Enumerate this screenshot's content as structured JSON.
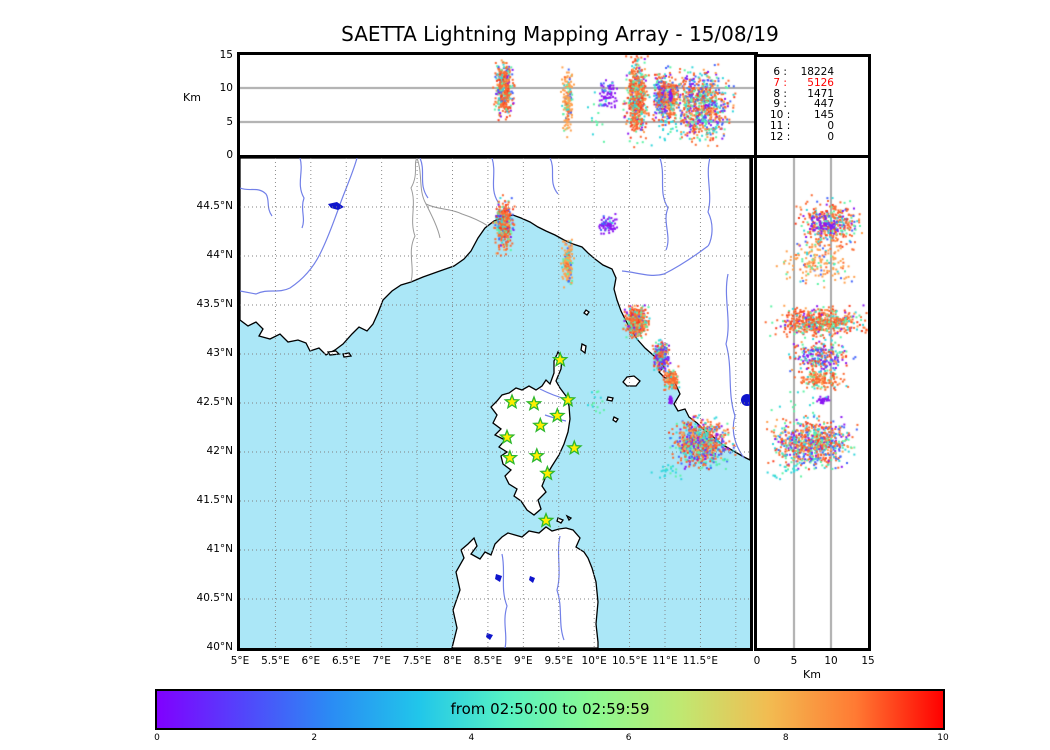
{
  "title": "SAETTA Lightning Mapping Array - 15/08/19",
  "top_panel": {
    "ylabel": "Km",
    "ylim": [
      0,
      15
    ],
    "yticks": [
      {
        "v": 0,
        "t": "0"
      },
      {
        "v": 5,
        "t": "5"
      },
      {
        "v": 10,
        "t": "10"
      },
      {
        "v": 15,
        "t": "15"
      }
    ],
    "grid": [
      5,
      10
    ]
  },
  "map_panel": {
    "lon_lim": [
      5,
      12.2
    ],
    "lat_lim": [
      40,
      45
    ],
    "lon_ticks": [
      {
        "v": 5,
        "t": "5°E"
      },
      {
        "v": 5.5,
        "t": "5.5°E"
      },
      {
        "v": 6,
        "t": "6°E"
      },
      {
        "v": 6.5,
        "t": "6.5°E"
      },
      {
        "v": 7,
        "t": "7°E"
      },
      {
        "v": 7.5,
        "t": "7.5°E"
      },
      {
        "v": 8,
        "t": "8°E"
      },
      {
        "v": 8.5,
        "t": "8.5°E"
      },
      {
        "v": 9,
        "t": "9°E"
      },
      {
        "v": 9.5,
        "t": "9.5°E"
      },
      {
        "v": 10,
        "t": "10°E"
      },
      {
        "v": 10.5,
        "t": "10.5°E"
      },
      {
        "v": 11,
        "t": "11°E"
      },
      {
        "v": 11.5,
        "t": "11.5°E"
      }
    ],
    "lat_ticks": [
      {
        "v": 40,
        "t": "40°N"
      },
      {
        "v": 40.5,
        "t": "40.5°N"
      },
      {
        "v": 41,
        "t": "41°N"
      },
      {
        "v": 41.5,
        "t": "41.5°N"
      },
      {
        "v": 42,
        "t": "42°N"
      },
      {
        "v": 42.5,
        "t": "42.5°N"
      },
      {
        "v": 43,
        "t": "43°N"
      },
      {
        "v": 43.5,
        "t": "43.5°N"
      },
      {
        "v": 44,
        "t": "44°N"
      },
      {
        "v": 44.5,
        "t": "44.5°N"
      }
    ],
    "grid_step": 0.5
  },
  "right_panel": {
    "xlabel": "Km",
    "xlim": [
      0,
      15
    ],
    "xticks": [
      {
        "v": 0,
        "t": "0"
      },
      {
        "v": 5,
        "t": "5"
      },
      {
        "v": 10,
        "t": "10"
      },
      {
        "v": 15,
        "t": "15"
      }
    ],
    "grid": [
      5,
      10
    ]
  },
  "counts_box": {
    "rows": [
      {
        "level": " 6",
        "value": "18224",
        "color": "#000000"
      },
      {
        "level": " 7",
        "value": "5126",
        "color": "#ff0000"
      },
      {
        "level": " 8",
        "value": "1471",
        "color": "#000000"
      },
      {
        "level": " 9",
        "value": "447",
        "color": "#000000"
      },
      {
        "level": "10",
        "value": "145",
        "color": "#000000"
      },
      {
        "level": "11",
        "value": "0",
        "color": "#000000"
      },
      {
        "level": "12",
        "value": "0",
        "color": "#000000"
      }
    ]
  },
  "colorbar": {
    "label": "from 02:50:00 to 02:59:59",
    "lim": [
      0,
      10
    ],
    "ticks": [
      {
        "v": 0,
        "t": "0"
      },
      {
        "v": 2,
        "t": "2"
      },
      {
        "v": 4,
        "t": "4"
      },
      {
        "v": 6,
        "t": "6"
      },
      {
        "v": 8,
        "t": "8"
      },
      {
        "v": 10,
        "t": "10"
      }
    ],
    "gradient": [
      "#8000ff",
      "#5246fb",
      "#2a8cf4",
      "#21c6ea",
      "#56f2c3",
      "#8cfa92",
      "#c0e871",
      "#f2bc51",
      "#ff7a33",
      "#ff0000"
    ]
  },
  "colors": {
    "sea": "#abe7f7",
    "land": "#ffffff",
    "coast": "#000000",
    "river": "#7280e8",
    "country_border": "#9a9a9a",
    "map_grid": "#808080",
    "panel_grid": "#555555",
    "lake": "#0f15cc",
    "star_fill": "#ffee00",
    "star_stroke": "#2db82d",
    "legend_highlight": "#ff0000"
  },
  "chart_data": {
    "type": "scatter",
    "title": "SAETTA Lightning Mapping Array - 15/08/19",
    "time_window": {
      "label": "from 02:50:00 to 02:59:59",
      "start": "02:50:00",
      "end": "02:59:59"
    },
    "views": [
      {
        "name": "altitude-vs-longitude",
        "xlim": [
          5,
          12.2
        ],
        "ylim": [
          0,
          15
        ],
        "ylabel": "Km"
      },
      {
        "name": "map-latitude-vs-longitude",
        "xlim": [
          5,
          12.2
        ],
        "ylim": [
          40,
          45
        ]
      },
      {
        "name": "altitude-vs-latitude",
        "xlim": [
          0,
          15
        ],
        "ylim": [
          40,
          45
        ],
        "xlabel": "Km"
      }
    ],
    "source_counts": [
      {
        "level": 6,
        "count": 18224
      },
      {
        "level": 7,
        "count": 5126
      },
      {
        "level": 8,
        "count": 1471
      },
      {
        "level": 9,
        "count": 447
      },
      {
        "level": 10,
        "count": 145
      },
      {
        "level": 11,
        "count": 0
      },
      {
        "level": 12,
        "count": 0
      }
    ],
    "storm_cells": [
      {
        "name": "liguria-genoa",
        "lon": 8.73,
        "lat": 44.32,
        "alt": 9.8,
        "lon_sd": 0.06,
        "lat_sd": 0.12,
        "alt_sd": 1.9,
        "n": 380,
        "colors": [
          [
            "#fb6a32",
            45
          ],
          [
            "#f93d1e",
            10
          ],
          [
            "#ffa14e",
            10
          ],
          [
            "#5ff3a6",
            15
          ],
          [
            "#33d6dc",
            8
          ],
          [
            "#4263fb",
            7
          ],
          [
            "#8a16f2",
            5
          ]
        ]
      },
      {
        "name": "apennines-purple",
        "lon": 10.18,
        "lat": 44.31,
        "alt": 9.2,
        "lon_sd": 0.07,
        "lat_sd": 0.05,
        "alt_sd": 1.1,
        "n": 70,
        "colors": [
          [
            "#8a16f2",
            80
          ],
          [
            "#4263fb",
            12
          ],
          [
            "#33d6dc",
            8
          ]
        ]
      },
      {
        "name": "la-spezia-orange",
        "lon": 9.62,
        "lat": 43.93,
        "alt": 8.2,
        "lon_sd": 0.035,
        "lat_sd": 0.1,
        "alt_sd": 2.2,
        "n": 170,
        "colors": [
          [
            "#ffa14e",
            62
          ],
          [
            "#fb6a32",
            12
          ],
          [
            "#4263fb",
            10
          ],
          [
            "#33d6dc",
            8
          ],
          [
            "#5ff3a6",
            8
          ]
        ]
      },
      {
        "name": "livorno-coast",
        "lon": 10.6,
        "lat": 43.33,
        "alt": 8.6,
        "lon_sd": 0.07,
        "lat_sd": 0.07,
        "alt_sd": 2.6,
        "n": 560,
        "colors": [
          [
            "#fb6a32",
            42
          ],
          [
            "#f93d1e",
            14
          ],
          [
            "#5ff3a6",
            18
          ],
          [
            "#ffa14e",
            12
          ],
          [
            "#33d6dc",
            7
          ],
          [
            "#8a16f2",
            7
          ]
        ]
      },
      {
        "name": "tuscany-43n",
        "lon": 10.95,
        "lat": 42.98,
        "alt": 8.6,
        "lon_sd": 0.05,
        "lat_sd": 0.07,
        "alt_sd": 1.8,
        "n": 270,
        "colors": [
          [
            "#8a16f2",
            24
          ],
          [
            "#4263fb",
            16
          ],
          [
            "#33d6dc",
            16
          ],
          [
            "#fb6a32",
            20
          ],
          [
            "#5ff3a6",
            12
          ],
          [
            "#f93d1e",
            8
          ],
          [
            "#ffa14e",
            4
          ]
        ]
      },
      {
        "name": "grosseto-orange",
        "lon": 11.09,
        "lat": 42.74,
        "alt": 8.6,
        "lon_sd": 0.045,
        "lat_sd": 0.05,
        "alt_sd": 1.4,
        "n": 170,
        "colors": [
          [
            "#fb6a32",
            55
          ],
          [
            "#ffa14e",
            15
          ],
          [
            "#5ff3a6",
            15
          ],
          [
            "#f93d1e",
            8
          ],
          [
            "#33d6dc",
            7
          ]
        ]
      },
      {
        "name": "purple-spot-4253",
        "lon": 11.08,
        "lat": 42.53,
        "alt": 8.9,
        "lon_sd": 0.012,
        "lat_sd": 0.018,
        "alt_sd": 0.5,
        "n": 30,
        "colors": [
          [
            "#8a16f2",
            100
          ]
        ]
      },
      {
        "name": "south-lazio-mixed",
        "lon": 11.52,
        "lat": 42.1,
        "alt": 7.4,
        "lon_sd": 0.17,
        "lat_sd": 0.11,
        "alt_sd": 2.4,
        "n": 760,
        "colors": [
          [
            "#fb6a32",
            28
          ],
          [
            "#f93d1e",
            7
          ],
          [
            "#4263fb",
            16
          ],
          [
            "#8a16f2",
            13
          ],
          [
            "#33d6dc",
            14
          ],
          [
            "#5ff3a6",
            14
          ],
          [
            "#ffa14e",
            8
          ]
        ]
      },
      {
        "name": "low-cyan-4180",
        "lon": 11.05,
        "lat": 41.8,
        "alt": 4.0,
        "lon_sd": 0.1,
        "lat_sd": 0.04,
        "alt_sd": 1.2,
        "n": 22,
        "colors": [
          [
            "#33d6dc",
            60
          ],
          [
            "#5ff3a6",
            40
          ]
        ]
      },
      {
        "name": "corsica-east-specks",
        "lon": 10.02,
        "lat": 42.52,
        "alt": 5.5,
        "lon_sd": 0.08,
        "lat_sd": 0.07,
        "alt_sd": 1.6,
        "n": 14,
        "colors": [
          [
            "#33d6dc",
            50
          ],
          [
            "#5ff3a6",
            50
          ]
        ]
      }
    ],
    "stations": [
      {
        "lon": 9.52,
        "lat": 42.94
      },
      {
        "lon": 8.84,
        "lat": 42.51
      },
      {
        "lon": 9.15,
        "lat": 42.49
      },
      {
        "lon": 9.63,
        "lat": 42.53
      },
      {
        "lon": 9.48,
        "lat": 42.37
      },
      {
        "lon": 9.24,
        "lat": 42.27
      },
      {
        "lon": 8.77,
        "lat": 42.15
      },
      {
        "lon": 9.72,
        "lat": 42.04
      },
      {
        "lon": 9.19,
        "lat": 41.96
      },
      {
        "lon": 8.81,
        "lat": 41.94
      },
      {
        "lon": 9.34,
        "lat": 41.78
      },
      {
        "lon": 9.32,
        "lat": 41.3
      }
    ]
  }
}
